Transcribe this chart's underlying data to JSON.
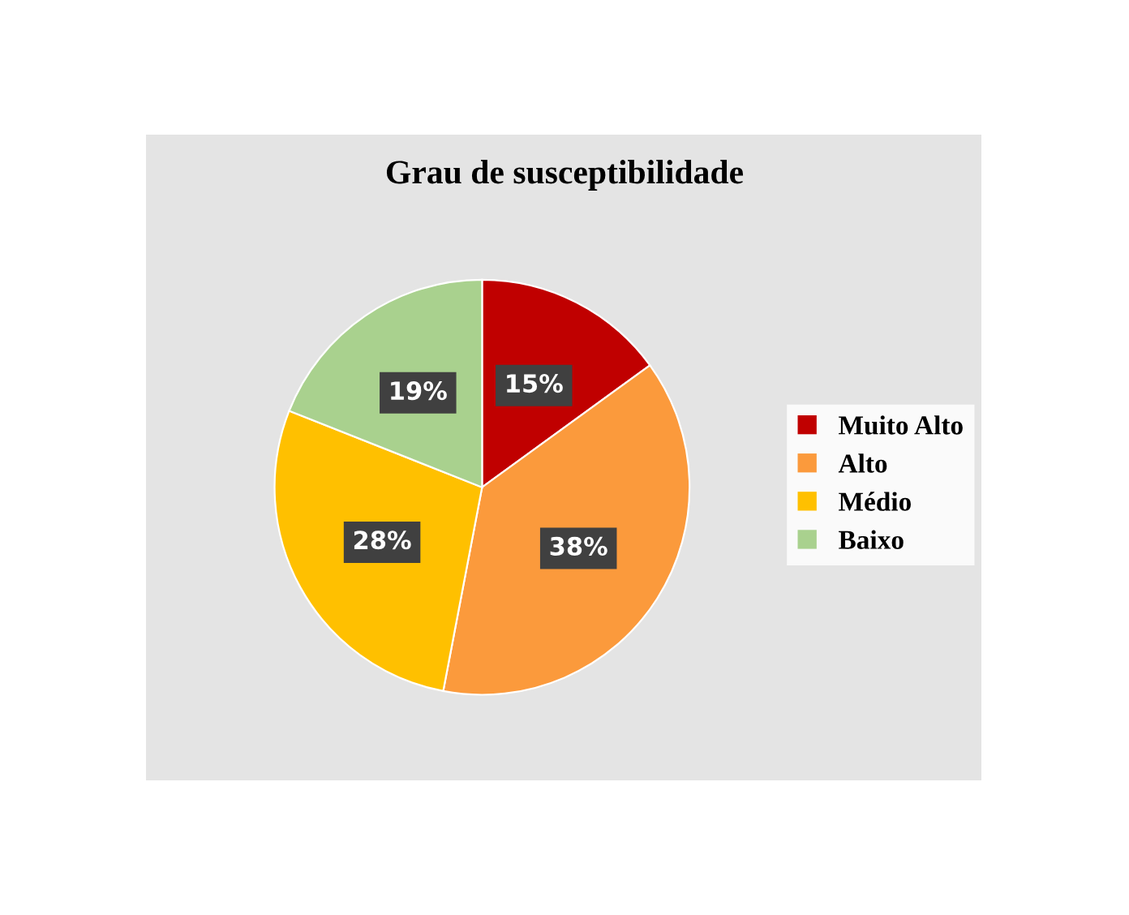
{
  "chart_data": {
    "type": "pie",
    "title": "Grau de susceptibilidade",
    "categories": [
      "Muito Alto",
      "Alto",
      "Médio",
      "Baixo"
    ],
    "values": [
      15,
      38,
      28,
      19
    ],
    "value_labels": [
      "15%",
      "38%",
      "28%",
      "19%"
    ],
    "colors": [
      "#c00000",
      "#fb9a3c",
      "#ffc000",
      "#a9d18e"
    ],
    "legend": "right"
  }
}
